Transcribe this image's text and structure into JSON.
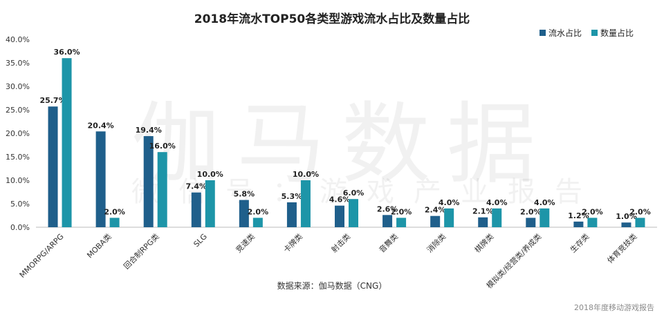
{
  "page": {
    "watermark": "伽马数据",
    "watermark_sub": "微信号：游戏产业报告",
    "footer_note": "2018年度移动游戏报告"
  },
  "chart_data": {
    "type": "bar",
    "title": "2018年流水TOP50各类型游戏流水占比及数量占比",
    "source": "数据来源：伽马数据（CNG）",
    "categories": [
      "MMORPG/ARPG",
      "MOBA类",
      "回合制RPG类",
      "SLG",
      "竞速类",
      "卡牌类",
      "射击类",
      "音舞类",
      "消除类",
      "棋牌类",
      "模拟类/经营类/养成类",
      "生存类",
      "体育竞技类"
    ],
    "series": [
      {
        "name": "流水占比",
        "color": "#1f5f8b",
        "values": [
          25.7,
          20.4,
          19.4,
          7.4,
          5.8,
          5.3,
          4.6,
          2.6,
          2.4,
          2.1,
          2.0,
          1.2,
          1.0
        ],
        "labels": [
          "25.7%",
          "20.4%",
          "19.4%",
          "7.4%",
          "5.8%",
          "5.3%",
          "4.6%",
          "2.6%",
          "2.4%",
          "2.1%",
          "2.0%",
          "1.2%",
          "1.0%"
        ]
      },
      {
        "name": "数量占比",
        "color": "#1d95a8",
        "values": [
          36.0,
          2.0,
          16.0,
          10.0,
          2.0,
          10.0,
          6.0,
          2.0,
          4.0,
          4.0,
          4.0,
          2.0,
          2.0
        ],
        "labels": [
          "36.0%",
          "2.0%",
          "16.0%",
          "10.0%",
          "2.0%",
          "10.0%",
          "6.0%",
          "2.0%",
          "4.0%",
          "4.0%",
          "4.0%",
          "2.0%",
          "2.0%"
        ]
      }
    ],
    "yticks": [
      "0.0%",
      "5.0%",
      "10.0%",
      "15.0%",
      "20.0%",
      "25.0%",
      "30.0%",
      "35.0%",
      "40.0%"
    ],
    "ylim": [
      0,
      40
    ],
    "grid": false,
    "legend": "top-right"
  }
}
